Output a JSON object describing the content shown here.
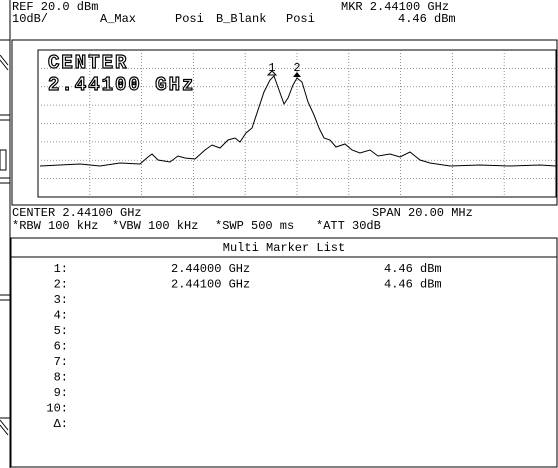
{
  "header": {
    "ref": "REF 20.0 dBm",
    "scale": "10dB/",
    "trace_a_mode": "A_Max",
    "trace_a_detector": "Posi",
    "trace_b_mode": "B_Blank",
    "trace_b_detector": "Posi",
    "marker": "MKR 2.44100 GHz",
    "marker_level": "4.46 dBm"
  },
  "graph": {
    "center_label": "CENTER",
    "center_value": "2.44100 GHz",
    "marker_1": "1",
    "marker_2": "2"
  },
  "settings": {
    "center": "CENTER 2.44100 GHz",
    "span": "SPAN 20.00 MHz",
    "rbw": "*RBW 100 kHz",
    "vbw": "*VBW 100 kHz",
    "sweep": "*SWP 500 ms",
    "attenuation": "*ATT 30dB"
  },
  "marker_list": {
    "title": "Multi Marker List",
    "rows": [
      {
        "index": "1:",
        "frequency": "2.44000 GHz",
        "level": "4.46 dBm"
      },
      {
        "index": "2:",
        "frequency": "2.44100 GHz",
        "level": "4.46 dBm"
      },
      {
        "index": "3:"
      },
      {
        "index": "4:"
      },
      {
        "index": "5:"
      },
      {
        "index": "6:"
      },
      {
        "index": "7:"
      },
      {
        "index": "8:"
      },
      {
        "index": "9:"
      },
      {
        "index": "10:"
      },
      {
        "index": "Δ:"
      }
    ]
  }
}
